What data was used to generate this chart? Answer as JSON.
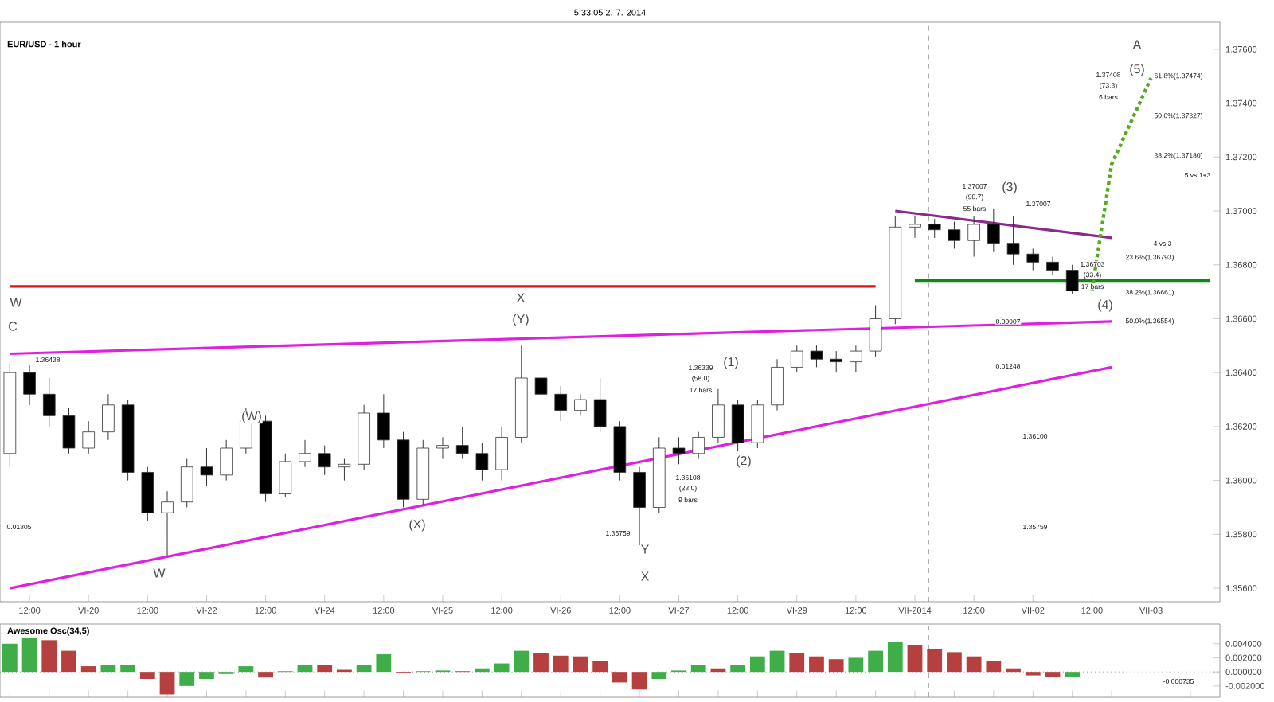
{
  "chart_data": [
    {
      "type": "candlestick",
      "title": "EUR/USD - 1 hour",
      "subtitle": "5:33:05 2. 7. 2014",
      "categories": [
        null,
        "12:00",
        null,
        null,
        "VI-20",
        null,
        null,
        "12:00",
        null,
        null,
        "VI-22",
        null,
        null,
        "12:00",
        null,
        null,
        "VI-24",
        null,
        null,
        "12:00",
        null,
        null,
        "VI-25",
        null,
        null,
        "12:00",
        null,
        null,
        "VI-26",
        null,
        null,
        "12:00",
        null,
        null,
        "VI-27",
        null,
        null,
        "12:00",
        null,
        null,
        "VI-29",
        null,
        null,
        "12:00",
        null,
        null,
        "VII-2014",
        null,
        null,
        "12:00",
        null,
        null,
        "VII-02",
        null,
        null,
        "12:00",
        null,
        null,
        "VII-03",
        null,
        null,
        null
      ],
      "ohlc": [
        [
          1.361,
          1.36438,
          1.3605,
          1.364
        ],
        [
          1.364,
          1.3643,
          1.3628,
          1.3632
        ],
        [
          1.3632,
          1.3638,
          1.362,
          1.3624
        ],
        [
          1.3624,
          1.3627,
          1.361,
          1.3612
        ],
        [
          1.3612,
          1.3622,
          1.361,
          1.3618
        ],
        [
          1.3618,
          1.3632,
          1.3615,
          1.3628
        ],
        [
          1.3628,
          1.363,
          1.36,
          1.3603
        ],
        [
          1.3603,
          1.3605,
          1.3585,
          1.3588
        ],
        [
          1.3588,
          1.3596,
          1.3572,
          1.3592
        ],
        [
          1.3592,
          1.3608,
          1.359,
          1.3605
        ],
        [
          1.3605,
          1.3612,
          1.3598,
          1.3602
        ],
        [
          1.3602,
          1.3615,
          1.36,
          1.3612
        ],
        [
          1.3612,
          1.3627,
          1.361,
          1.3622
        ],
        [
          1.3622,
          1.3624,
          1.3592,
          1.3595
        ],
        [
          1.3595,
          1.361,
          1.3594,
          1.3607
        ],
        [
          1.3607,
          1.3615,
          1.3605,
          1.361
        ],
        [
          1.361,
          1.3613,
          1.3602,
          1.3605
        ],
        [
          1.3605,
          1.3608,
          1.36,
          1.3606
        ],
        [
          1.3606,
          1.3628,
          1.3604,
          1.3625
        ],
        [
          1.3625,
          1.3632,
          1.3612,
          1.3615
        ],
        [
          1.3615,
          1.3618,
          1.359,
          1.3593
        ],
        [
          1.3593,
          1.3615,
          1.3591,
          1.3612
        ],
        [
          1.3612,
          1.3616,
          1.3608,
          1.3613
        ],
        [
          1.3613,
          1.362,
          1.3608,
          1.361
        ],
        [
          1.361,
          1.3614,
          1.36,
          1.3604
        ],
        [
          1.3604,
          1.362,
          1.36,
          1.3616
        ],
        [
          1.3616,
          1.365,
          1.3614,
          1.3638
        ],
        [
          1.3638,
          1.364,
          1.3628,
          1.3632
        ],
        [
          1.3632,
          1.3635,
          1.3622,
          1.3626
        ],
        [
          1.3626,
          1.3632,
          1.3624,
          1.363
        ],
        [
          1.363,
          1.3638,
          1.3618,
          1.362
        ],
        [
          1.362,
          1.3622,
          1.36,
          1.3603
        ],
        [
          1.3603,
          1.3605,
          1.35759,
          1.359
        ],
        [
          1.359,
          1.3616,
          1.3588,
          1.3612
        ],
        [
          1.3612,
          1.3616,
          1.3606,
          1.361
        ],
        [
          1.361,
          1.3618,
          1.3608,
          1.3616
        ],
        [
          1.3616,
          1.36339,
          1.3614,
          1.3628
        ],
        [
          1.3628,
          1.363,
          1.36108,
          1.3614
        ],
        [
          1.3614,
          1.363,
          1.3612,
          1.3628
        ],
        [
          1.3628,
          1.3645,
          1.3626,
          1.3642
        ],
        [
          1.3642,
          1.365,
          1.364,
          1.3648
        ],
        [
          1.3648,
          1.365,
          1.3642,
          1.3645
        ],
        [
          1.3645,
          1.3648,
          1.364,
          1.3644
        ],
        [
          1.3644,
          1.365,
          1.364,
          1.3648
        ],
        [
          1.3648,
          1.3665,
          1.3646,
          1.366
        ],
        [
          1.366,
          1.3698,
          1.3658,
          1.3694
        ],
        [
          1.3694,
          1.3698,
          1.369,
          1.3695
        ],
        [
          1.3695,
          1.3697,
          1.369,
          1.3693
        ],
        [
          1.3693,
          1.3696,
          1.3686,
          1.3689
        ],
        [
          1.3689,
          1.3698,
          1.3683,
          1.3695
        ],
        [
          1.3695,
          1.37007,
          1.3685,
          1.3688
        ],
        [
          1.3688,
          1.3698,
          1.368,
          1.3684
        ],
        [
          1.3684,
          1.3686,
          1.3678,
          1.3681
        ],
        [
          1.3681,
          1.3683,
          1.3676,
          1.3678
        ],
        [
          1.3678,
          1.368,
          1.3669,
          1.36703
        ],
        null,
        null,
        null,
        null,
        null,
        null,
        null
      ],
      "series": [
        {
          "type": "line",
          "color": "#e020e0",
          "values": [
            1.3647,
            null,
            null,
            null,
            null,
            null,
            null,
            null,
            null,
            null,
            null,
            null,
            null,
            null,
            null,
            null,
            null,
            null,
            null,
            null,
            null,
            null,
            null,
            null,
            null,
            null,
            null,
            null,
            null,
            null,
            null,
            null,
            null,
            null,
            null,
            null,
            null,
            null,
            null,
            null,
            null,
            null,
            null,
            null,
            null,
            null,
            null,
            null,
            null,
            null,
            null,
            null,
            null,
            null,
            null,
            null,
            1.3659,
            null,
            null,
            null,
            null,
            null
          ]
        },
        {
          "type": "line",
          "color": "#e020e0",
          "values": [
            1.356,
            null,
            null,
            null,
            null,
            null,
            null,
            null,
            null,
            null,
            null,
            null,
            null,
            null,
            null,
            null,
            null,
            null,
            null,
            null,
            null,
            null,
            null,
            null,
            null,
            null,
            null,
            null,
            null,
            null,
            null,
            null,
            null,
            null,
            null,
            null,
            null,
            null,
            null,
            null,
            null,
            null,
            null,
            null,
            null,
            null,
            null,
            null,
            null,
            null,
            null,
            null,
            null,
            null,
            null,
            null,
            1.3642,
            null,
            null,
            null,
            null,
            null
          ]
        },
        {
          "type": "line",
          "color": "#8a2a8a",
          "values": [
            null,
            null,
            null,
            null,
            null,
            null,
            null,
            null,
            null,
            null,
            null,
            null,
            null,
            null,
            null,
            null,
            null,
            null,
            null,
            null,
            null,
            null,
            null,
            null,
            null,
            null,
            null,
            null,
            null,
            null,
            null,
            null,
            null,
            null,
            null,
            null,
            null,
            null,
            null,
            null,
            null,
            null,
            null,
            null,
            null,
            1.37,
            null,
            null,
            null,
            null,
            null,
            null,
            null,
            null,
            null,
            null,
            1.369,
            null,
            null,
            null,
            null,
            null
          ]
        },
        {
          "type": "line",
          "color": "#e01010",
          "values": [
            1.3672,
            null,
            null,
            null,
            null,
            null,
            null,
            null,
            null,
            null,
            null,
            null,
            null,
            null,
            null,
            null,
            null,
            null,
            null,
            null,
            null,
            null,
            null,
            null,
            null,
            null,
            null,
            null,
            null,
            null,
            null,
            null,
            null,
            null,
            null,
            null,
            null,
            null,
            null,
            null,
            null,
            null,
            null,
            null,
            1.3672,
            null,
            null,
            null,
            null,
            null,
            null,
            null,
            null,
            null,
            null,
            null,
            null,
            null,
            null,
            null,
            null,
            null
          ]
        },
        {
          "type": "line",
          "color": "#118811",
          "values": [
            null,
            null,
            null,
            null,
            null,
            null,
            null,
            null,
            null,
            null,
            null,
            null,
            null,
            null,
            null,
            null,
            null,
            null,
            null,
            null,
            null,
            null,
            null,
            null,
            null,
            null,
            null,
            null,
            null,
            null,
            null,
            null,
            null,
            null,
            null,
            null,
            null,
            null,
            null,
            null,
            null,
            null,
            null,
            null,
            null,
            null,
            1.36741,
            null,
            null,
            null,
            null,
            null,
            null,
            null,
            null,
            null,
            null,
            null,
            null,
            null,
            null,
            1.36741
          ]
        },
        {
          "type": "line",
          "color": "#55aa22",
          "line_style": "dotted",
          "values": [
            null,
            null,
            null,
            null,
            null,
            null,
            null,
            null,
            null,
            null,
            null,
            null,
            null,
            null,
            null,
            null,
            null,
            null,
            null,
            null,
            null,
            null,
            null,
            null,
            null,
            null,
            null,
            null,
            null,
            null,
            null,
            null,
            null,
            null,
            null,
            null,
            null,
            null,
            null,
            null,
            null,
            null,
            null,
            null,
            null,
            null,
            null,
            null,
            null,
            null,
            null,
            null,
            null,
            null,
            null,
            1.36706,
            1.37173,
            null,
            1.37493,
            null,
            null,
            null
          ]
        }
      ],
      "ylim": [
        1.3555,
        1.377
      ],
      "yticks": [
        {
          "value": 1.356,
          "label": "1.35600"
        },
        {
          "value": 1.358,
          "label": "1.35800"
        },
        {
          "value": 1.36,
          "label": "1.36000"
        },
        {
          "value": 1.362,
          "label": "1.36200"
        },
        {
          "value": 1.364,
          "label": "1.36400"
        },
        {
          "value": 1.366,
          "label": "1.36600"
        },
        {
          "value": 1.368,
          "label": "1.36800"
        },
        {
          "value": 1.37,
          "label": "1.37000"
        },
        {
          "value": 1.372,
          "label": "1.37200"
        },
        {
          "value": 1.374,
          "label": "1.37400"
        },
        {
          "value": 1.376,
          "label": "1.37600"
        }
      ],
      "annotations": [
        "C",
        "1.36438",
        "W",
        "W",
        "(W)",
        "(X)",
        "X",
        "(Y)",
        "1.35759",
        "Y",
        "X",
        "1.36339",
        "(58.0)",
        "17 bars",
        "(1)",
        "1.36108",
        "(23.0)",
        "9 bars",
        "(2)",
        "1.37007",
        "(90.7)",
        "55 bars",
        "(3)",
        "1.37007",
        "0.00907",
        "0.01248",
        "1.36100",
        "1.35759",
        "1.36703",
        "(33.4)",
        "17 bars",
        "(4)",
        "1.37408",
        "(73.3)",
        "6 bars",
        "(5)",
        "A",
        "61.8%(1.37474)",
        "50.0%(1.37327)",
        "38.2%(1.37180)",
        "5 vs 1+3",
        "4 vs 3",
        "23.6%(1.36793)",
        "38.2%(1.36661)",
        "50.0%(1.36554)",
        "0.01305"
      ],
      "tick_labels": "xy"
    },
    {
      "type": "bar",
      "title": "Awesome Osc(34,5)",
      "categories": [
        null,
        null,
        null,
        null,
        null,
        null,
        null,
        null,
        null,
        null,
        null,
        null,
        null,
        null,
        null,
        null,
        null,
        null,
        null,
        null,
        null,
        null,
        null,
        null,
        null,
        null,
        null,
        null,
        null,
        null,
        null,
        null,
        null,
        null,
        null,
        null,
        null,
        null,
        null,
        null,
        null,
        null,
        null,
        null,
        null,
        null,
        null,
        null,
        null,
        null,
        null,
        null,
        null,
        null,
        null,
        null,
        null,
        null,
        null,
        null,
        null,
        null
      ],
      "values": [
        0.004,
        0.0048,
        0.0045,
        0.003,
        0.0008,
        0.001,
        0.001,
        -0.001,
        -0.0032,
        -0.002,
        -0.001,
        -0.0003,
        0.0008,
        -0.0008,
        0.0001,
        0.001,
        0.001,
        0.0003,
        0.001,
        0.0025,
        -0.0002,
        0.0001,
        0.0002,
        0.0001,
        0.0005,
        0.0012,
        0.003,
        0.0027,
        0.0023,
        0.0022,
        0.0016,
        -0.0015,
        -0.0025,
        -0.001,
        0.0002,
        0.001,
        0.0005,
        0.001,
        0.0022,
        0.003,
        0.0027,
        0.0022,
        0.0018,
        0.002,
        0.003,
        0.0042,
        0.0038,
        0.0033,
        0.0028,
        0.0022,
        0.0015,
        0.0005,
        -0.0005,
        -0.0007,
        -0.0007,
        null,
        null,
        null,
        null,
        null,
        null,
        null
      ],
      "colors": [
        "#3fae49",
        "#3fae49",
        "#b5403f",
        "#b5403f",
        "#b5403f",
        "#3fae49",
        "#3fae49",
        "#b5403f",
        "#b5403f",
        "#3fae49",
        "#3fae49",
        "#3fae49",
        "#3fae49",
        "#b5403f",
        "#3fae49",
        "#3fae49",
        "#b5403f",
        "#b5403f",
        "#3fae49",
        "#3fae49",
        "#b5403f",
        "#3fae49",
        "#3fae49",
        "#b5403f",
        "#3fae49",
        "#3fae49",
        "#3fae49",
        "#b5403f",
        "#b5403f",
        "#b5403f",
        "#b5403f",
        "#b5403f",
        "#b5403f",
        "#3fae49",
        "#3fae49",
        "#3fae49",
        "#b5403f",
        "#3fae49",
        "#3fae49",
        "#3fae49",
        "#b5403f",
        "#b5403f",
        "#b5403f",
        "#3fae49",
        "#3fae49",
        "#3fae49",
        "#b5403f",
        "#b5403f",
        "#b5403f",
        "#b5403f",
        "#b5403f",
        "#b5403f",
        "#b5403f",
        "#b5403f",
        "#3fae49",
        null,
        null,
        null,
        null,
        null,
        null,
        null
      ],
      "ref_lines": [
        {
          "axis": "y",
          "value": 0,
          "color": "#909090",
          "line_style": "dotted"
        }
      ],
      "annotations": [
        "-0.000735"
      ],
      "ylim": [
        -0.0036,
        0.0068
      ],
      "yticks": [
        {
          "value": -0.002,
          "label": "-0.002000"
        },
        {
          "value": 0,
          "label": "0.000000"
        },
        {
          "value": 0.002,
          "label": "0.002000"
        },
        {
          "value": 0.004,
          "label": "0.004000"
        }
      ],
      "tick_labels": "y"
    }
  ]
}
